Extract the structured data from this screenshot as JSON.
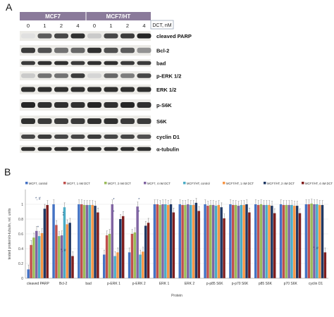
{
  "panel_a": {
    "letter": "A",
    "cell_lines": [
      "MCF7",
      "MCF7/HT"
    ],
    "doses": [
      "0",
      "1",
      "2",
      "4",
      "0",
      "1",
      "2",
      "4"
    ],
    "dose_label": "DCT, nM",
    "rows": [
      {
        "label": "cleaved PARP",
        "bands": [
          0.05,
          0.65,
          0.75,
          0.85,
          0.15,
          0.75,
          0.8,
          0.9
        ]
      },
      {
        "label": "Bcl-2",
        "bands": [
          0.8,
          0.7,
          0.55,
          0.6,
          0.85,
          0.7,
          0.65,
          0.4
        ]
      },
      {
        "label": "bad",
        "bands": [
          0.8,
          0.85,
          0.85,
          0.8,
          0.85,
          0.85,
          0.8,
          0.8
        ]
      },
      {
        "label": "p-ERK 1/2",
        "bands": [
          0.15,
          0.55,
          0.55,
          0.8,
          0.1,
          0.6,
          0.5,
          0.75
        ]
      },
      {
        "label": "ERK 1/2",
        "bands": [
          0.85,
          0.85,
          0.85,
          0.85,
          0.85,
          0.85,
          0.85,
          0.85
        ]
      },
      {
        "label": "p-S6K",
        "bands": [
          0.9,
          0.85,
          0.85,
          0.85,
          0.9,
          0.85,
          0.9,
          0.85
        ]
      },
      {
        "label": "S6K",
        "bands": [
          0.85,
          0.8,
          0.8,
          0.8,
          0.85,
          0.85,
          0.8,
          0.8
        ]
      },
      {
        "label": "cyclin D1",
        "bands": [
          0.75,
          0.8,
          0.75,
          0.75,
          0.8,
          0.75,
          0.75,
          0.7
        ]
      },
      {
        "label": "α-tubulin",
        "bands": [
          0.85,
          0.85,
          0.85,
          0.85,
          0.85,
          0.85,
          0.85,
          0.85
        ]
      }
    ]
  },
  "panel_b": {
    "letter": "B",
    "colors": [
      "#4472c4",
      "#c0504d",
      "#9bbb59",
      "#8064a2",
      "#4bacc6",
      "#f79646",
      "#1f3864",
      "#7f1d1d"
    ],
    "ytick_labels": [
      "0",
      "0.2",
      "0.4",
      "0.6",
      "0.8",
      "1"
    ],
    "markers": [
      {
        "text": "*",
        "cat": 0,
        "y": 0.67
      },
      {
        "text": "*, #",
        "cat": 0,
        "y": 1.06
      },
      {
        "text": "*",
        "cat": 1,
        "y": 0.86
      },
      {
        "text": "*",
        "cat": 1,
        "y": 0.83
      },
      {
        "text": "*, #",
        "cat": 1,
        "y": 0.36
      },
      {
        "text": "*",
        "cat": 3,
        "y": 1.05
      },
      {
        "text": "*",
        "cat": 3,
        "y": 0.88
      },
      {
        "text": "*",
        "cat": 4,
        "y": 1.05
      },
      {
        "text": "*",
        "cat": 4,
        "y": 0.88
      },
      {
        "text": "*, #",
        "cat": 11,
        "y": 0.39
      }
    ]
  },
  "chart_data": {
    "type": "bar",
    "categories": [
      "cleaved PARP",
      "Bcl-2",
      "bad",
      "p-ERK 1",
      "p-ERK 2",
      "ERK 1",
      "ERK 2",
      "p-p85 S6K",
      "p-p70 S6K",
      "p85 S6K",
      "p70 S6K",
      "cyclin D1"
    ],
    "xlabel": "Protein",
    "ylabel": "tested protein/α-tubulin, rel. units",
    "ylim": [
      0,
      1.2
    ],
    "legend_position": "top",
    "series": [
      {
        "name": "MCF7, control",
        "values": [
          0.12,
          1.0,
          1.0,
          0.32,
          0.35,
          1.0,
          1.0,
          1.0,
          1.0,
          1.0,
          1.0,
          1.0
        ]
      },
      {
        "name": "MCF7, 1 nM DCT",
        "values": [
          0.45,
          0.72,
          1.0,
          0.58,
          0.6,
          1.0,
          0.99,
          0.98,
          0.99,
          0.99,
          0.99,
          1.0
        ]
      },
      {
        "name": "MCF7, 2 nM DCT",
        "values": [
          0.55,
          0.57,
          0.99,
          0.6,
          0.62,
          0.99,
          0.99,
          0.99,
          0.99,
          1.0,
          0.99,
          1.01
        ]
      },
      {
        "name": "MCF7, 4 nM DCT",
        "values": [
          0.64,
          0.58,
          0.99,
          1.0,
          0.97,
          1.0,
          1.0,
          0.99,
          0.98,
          0.99,
          0.99,
          1.0
        ]
      },
      {
        "name": "MCF7/HT, control",
        "values": [
          0.57,
          0.96,
          0.99,
          0.3,
          0.32,
          1.0,
          0.99,
          0.98,
          0.99,
          0.99,
          0.99,
          1.0
        ]
      },
      {
        "name": "MCF7/HT, 1 nM DCT",
        "values": [
          0.61,
          0.73,
          0.99,
          0.35,
          0.36,
          0.99,
          0.99,
          0.99,
          0.99,
          0.99,
          0.98,
          0.99
        ]
      },
      {
        "name": "MCF7/HT, 2 nM DCT",
        "values": [
          0.94,
          0.75,
          0.98,
          0.8,
          0.71,
          1.0,
          1.02,
          0.96,
          1.0,
          0.98,
          0.98,
          0.99
        ]
      },
      {
        "name": "MCF7/HT, 4 nM DCT",
        "values": [
          0.99,
          0.3,
          0.89,
          0.84,
          0.75,
          0.89,
          0.91,
          0.81,
          0.89,
          0.88,
          0.88,
          0.35
        ]
      }
    ]
  }
}
